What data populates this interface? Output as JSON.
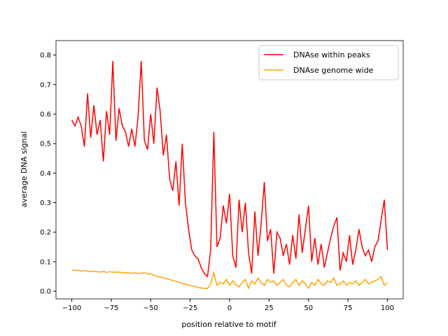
{
  "chart_data": {
    "type": "line",
    "xlabel": "position relative to motif",
    "ylabel": "average DNA signal",
    "x": [
      -100,
      -98,
      -96,
      -94,
      -92,
      -90,
      -88,
      -86,
      -84,
      -82,
      -80,
      -78,
      -76,
      -74,
      -72,
      -70,
      -68,
      -66,
      -64,
      -62,
      -60,
      -58,
      -56,
      -54,
      -52,
      -50,
      -48,
      -46,
      -44,
      -42,
      -40,
      -38,
      -36,
      -34,
      -32,
      -30,
      -28,
      -26,
      -24,
      -22,
      -20,
      -18,
      -16,
      -14,
      -12,
      -10,
      -8,
      -6,
      -4,
      -2,
      0,
      2,
      4,
      6,
      8,
      10,
      12,
      14,
      16,
      18,
      20,
      22,
      24,
      26,
      28,
      30,
      32,
      34,
      36,
      38,
      40,
      42,
      44,
      46,
      48,
      50,
      52,
      54,
      56,
      58,
      60,
      62,
      64,
      66,
      68,
      70,
      72,
      74,
      76,
      78,
      80,
      82,
      84,
      86,
      88,
      90,
      92,
      94,
      96,
      98,
      100
    ],
    "series": [
      {
        "name": "DNAse within peaks",
        "color": "#ff0000",
        "values": [
          0.58,
          0.56,
          0.59,
          0.56,
          0.49,
          0.67,
          0.52,
          0.63,
          0.53,
          0.58,
          0.44,
          0.61,
          0.53,
          0.78,
          0.51,
          0.62,
          0.56,
          0.54,
          0.49,
          0.55,
          0.49,
          0.59,
          0.78,
          0.51,
          0.48,
          0.6,
          0.5,
          0.69,
          0.61,
          0.46,
          0.53,
          0.38,
          0.34,
          0.44,
          0.29,
          0.5,
          0.3,
          0.21,
          0.14,
          0.12,
          0.11,
          0.08,
          0.06,
          0.05,
          0.14,
          0.54,
          0.15,
          0.18,
          0.29,
          0.23,
          0.33,
          0.12,
          0.08,
          0.31,
          0.2,
          0.3,
          0.13,
          0.06,
          0.27,
          0.12,
          0.23,
          0.37,
          0.17,
          0.21,
          0.06,
          0.2,
          0.18,
          0.12,
          0.16,
          0.09,
          0.19,
          0.11,
          0.26,
          0.13,
          0.21,
          0.29,
          0.1,
          0.18,
          0.09,
          0.16,
          0.08,
          0.13,
          0.18,
          0.22,
          0.25,
          0.07,
          0.13,
          0.1,
          0.19,
          0.09,
          0.14,
          0.21,
          0.15,
          0.12,
          0.14,
          0.1,
          0.15,
          0.17,
          0.24,
          0.31,
          0.14
        ]
      },
      {
        "name": "DNAse genome wide",
        "color": "#ffa500",
        "values": [
          0.072,
          0.07,
          0.071,
          0.069,
          0.07,
          0.068,
          0.067,
          0.068,
          0.066,
          0.065,
          0.067,
          0.064,
          0.066,
          0.065,
          0.064,
          0.065,
          0.063,
          0.062,
          0.063,
          0.061,
          0.062,
          0.06,
          0.061,
          0.063,
          0.059,
          0.058,
          0.055,
          0.05,
          0.048,
          0.046,
          0.042,
          0.04,
          0.036,
          0.034,
          0.03,
          0.026,
          0.024,
          0.021,
          0.018,
          0.016,
          0.013,
          0.011,
          0.01,
          0.009,
          0.025,
          0.062,
          0.02,
          0.03,
          0.025,
          0.04,
          0.02,
          0.035,
          0.022,
          0.015,
          0.03,
          0.04,
          0.01,
          0.035,
          0.025,
          0.045,
          0.03,
          0.02,
          0.04,
          0.03,
          0.035,
          0.02,
          0.03,
          0.04,
          0.02,
          0.015,
          0.03,
          0.04,
          0.02,
          0.035,
          0.025,
          0.01,
          0.03,
          0.02,
          0.04,
          0.025,
          0.02,
          0.035,
          0.03,
          0.045,
          0.02,
          0.025,
          0.035,
          0.02,
          0.03,
          0.025,
          0.035,
          0.02,
          0.03,
          0.04,
          0.025,
          0.03,
          0.035,
          0.04,
          0.05,
          0.02,
          0.03
        ]
      }
    ],
    "xlim": [
      -110,
      110
    ],
    "xticks": [
      {
        "value": -100,
        "label": "−100"
      },
      {
        "value": -75,
        "label": "−75"
      },
      {
        "value": -50,
        "label": "−50"
      },
      {
        "value": -25,
        "label": "−25"
      },
      0,
      25,
      50,
      75,
      100
    ],
    "ylim": [
      -0.026,
      0.849
    ],
    "yticks": [
      {
        "value": 0,
        "label": "0.0"
      },
      0.1,
      0.2,
      0.3,
      0.4,
      0.5,
      0.6,
      0.7,
      0.8
    ],
    "legend": "upper right"
  }
}
